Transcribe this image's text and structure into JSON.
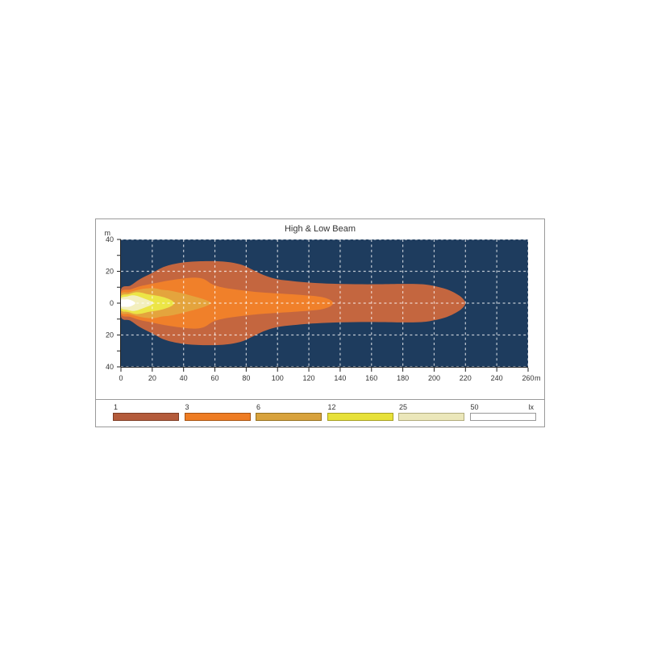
{
  "chart_data": {
    "type": "area",
    "subtype": "isolux-beam-contour",
    "title": "High & Low Beam",
    "xlabel": "m",
    "ylabel": "m",
    "xlim": [
      0,
      260
    ],
    "ylim": [
      -40,
      40
    ],
    "grid": "dashed-white",
    "plot_background": "#1e3c5e",
    "grid_color": "#ffffff",
    "grid_opacity": 0.72,
    "axis_color": "#222222",
    "label_color": "#333333",
    "x_axis": {
      "unit": "m",
      "ticks": [
        0,
        20,
        40,
        60,
        80,
        100,
        120,
        140,
        160,
        180,
        200,
        220,
        240,
        260
      ],
      "tick_labels": [
        "0",
        "20",
        "40",
        "60",
        "80",
        "100",
        "120",
        "140",
        "160",
        "180",
        "200",
        "220",
        "240",
        "260"
      ]
    },
    "y_axis": {
      "unit": "m",
      "tick_values": [
        40,
        20,
        0,
        -20,
        -40
      ],
      "tick_labels": [
        "40",
        "20",
        "0",
        "20",
        "40"
      ],
      "minor_tick_step": 10
    },
    "levels": [
      {
        "lux": 1,
        "color": "#c4663f",
        "reach_m": 220,
        "max_half_width_m": 26.5,
        "outline_top_half_m": [
          [
            0,
            8.5
          ],
          [
            6,
            11
          ],
          [
            12,
            15
          ],
          [
            20,
            19
          ],
          [
            28,
            23
          ],
          [
            38,
            25.3
          ],
          [
            48,
            26.2
          ],
          [
            60,
            26.4
          ],
          [
            70,
            25.6
          ],
          [
            78,
            23.8
          ],
          [
            84,
            21
          ],
          [
            92,
            17.3
          ],
          [
            100,
            15
          ],
          [
            110,
            13.8
          ],
          [
            122,
            12.8
          ],
          [
            135,
            12.2
          ],
          [
            150,
            11.9
          ],
          [
            165,
            11.9
          ],
          [
            180,
            12.1
          ],
          [
            192,
            11.9
          ],
          [
            200,
            10.8
          ],
          [
            208,
            8.7
          ],
          [
            214,
            6
          ],
          [
            218,
            3.2
          ],
          [
            220,
            0
          ]
        ]
      },
      {
        "lux": 3,
        "color": "#f0802a",
        "reach_m": 135,
        "max_half_width_m": 16,
        "outline_top_half_m": [
          [
            0,
            6.8
          ],
          [
            6,
            8.6
          ],
          [
            12,
            10.6
          ],
          [
            20,
            12.2
          ],
          [
            28,
            13.8
          ],
          [
            36,
            15
          ],
          [
            44,
            15.9
          ],
          [
            50,
            15.8
          ],
          [
            54,
            14.6
          ],
          [
            58,
            12
          ],
          [
            63,
            10.3
          ],
          [
            70,
            9
          ],
          [
            78,
            8
          ],
          [
            88,
            6.9
          ],
          [
            98,
            6.2
          ],
          [
            108,
            5.6
          ],
          [
            117,
            5
          ],
          [
            125,
            4.3
          ],
          [
            130,
            3.4
          ],
          [
            134,
            1.8
          ],
          [
            135.5,
            0
          ]
        ]
      },
      {
        "lux": 6,
        "color": "#e4a43d",
        "reach_m": 57,
        "max_half_width_m": 9.4,
        "outline_top_half_m": [
          [
            0,
            5.6
          ],
          [
            5,
            6.8
          ],
          [
            10,
            8.1
          ],
          [
            15,
            9.1
          ],
          [
            21,
            9.4
          ],
          [
            26,
            8.4
          ],
          [
            31,
            7.9
          ],
          [
            37,
            6.7
          ],
          [
            43,
            5.2
          ],
          [
            49,
            3.6
          ],
          [
            54,
            2
          ],
          [
            57.5,
            0
          ]
        ]
      },
      {
        "lux": 12,
        "color": "#ece546",
        "reach_m": 34,
        "max_half_width_m": 6.8,
        "outline_top_half_m": [
          [
            0,
            4.3
          ],
          [
            5,
            5.6
          ],
          [
            9,
            6.8
          ],
          [
            13,
            6.6
          ],
          [
            17,
            5.6
          ],
          [
            21,
            5
          ],
          [
            25,
            4.3
          ],
          [
            29,
            3.2
          ],
          [
            32.5,
            1.7
          ],
          [
            34,
            0
          ]
        ]
      },
      {
        "lux": 25,
        "color": "#f3efbe",
        "reach_m": 20.5,
        "max_half_width_m": 4.9,
        "outline_top_half_m": [
          [
            0,
            3
          ],
          [
            4,
            4.2
          ],
          [
            7,
            4.9
          ],
          [
            10,
            4.6
          ],
          [
            13,
            3.6
          ],
          [
            16,
            2.5
          ],
          [
            19,
            1.3
          ],
          [
            20.5,
            0
          ]
        ]
      },
      {
        "lux": 50,
        "color": "#ffffff",
        "reach_m": 9,
        "max_half_width_m": 2.3,
        "outline_top_half_m": [
          [
            0,
            1.9
          ],
          [
            2.5,
            2.3
          ],
          [
            5,
            2.3
          ],
          [
            7,
            1.6
          ],
          [
            8.5,
            0.8
          ],
          [
            9.2,
            0
          ]
        ]
      }
    ]
  },
  "legend": {
    "unit_label": "lx",
    "items": [
      {
        "label": "1",
        "color": "#b45b3b",
        "border": "#7e3d24"
      },
      {
        "label": "3",
        "color": "#ee7c23",
        "border": "#a85310"
      },
      {
        "label": "6",
        "color": "#d8a23c",
        "border": "#96711f"
      },
      {
        "label": "12",
        "color": "#e7e139",
        "border": "#a6a023"
      },
      {
        "label": "25",
        "color": "#ebe7ba",
        "border": "#b1ac7d"
      },
      {
        "label": "50",
        "color": "#ffffff",
        "border": "#999999"
      }
    ]
  }
}
